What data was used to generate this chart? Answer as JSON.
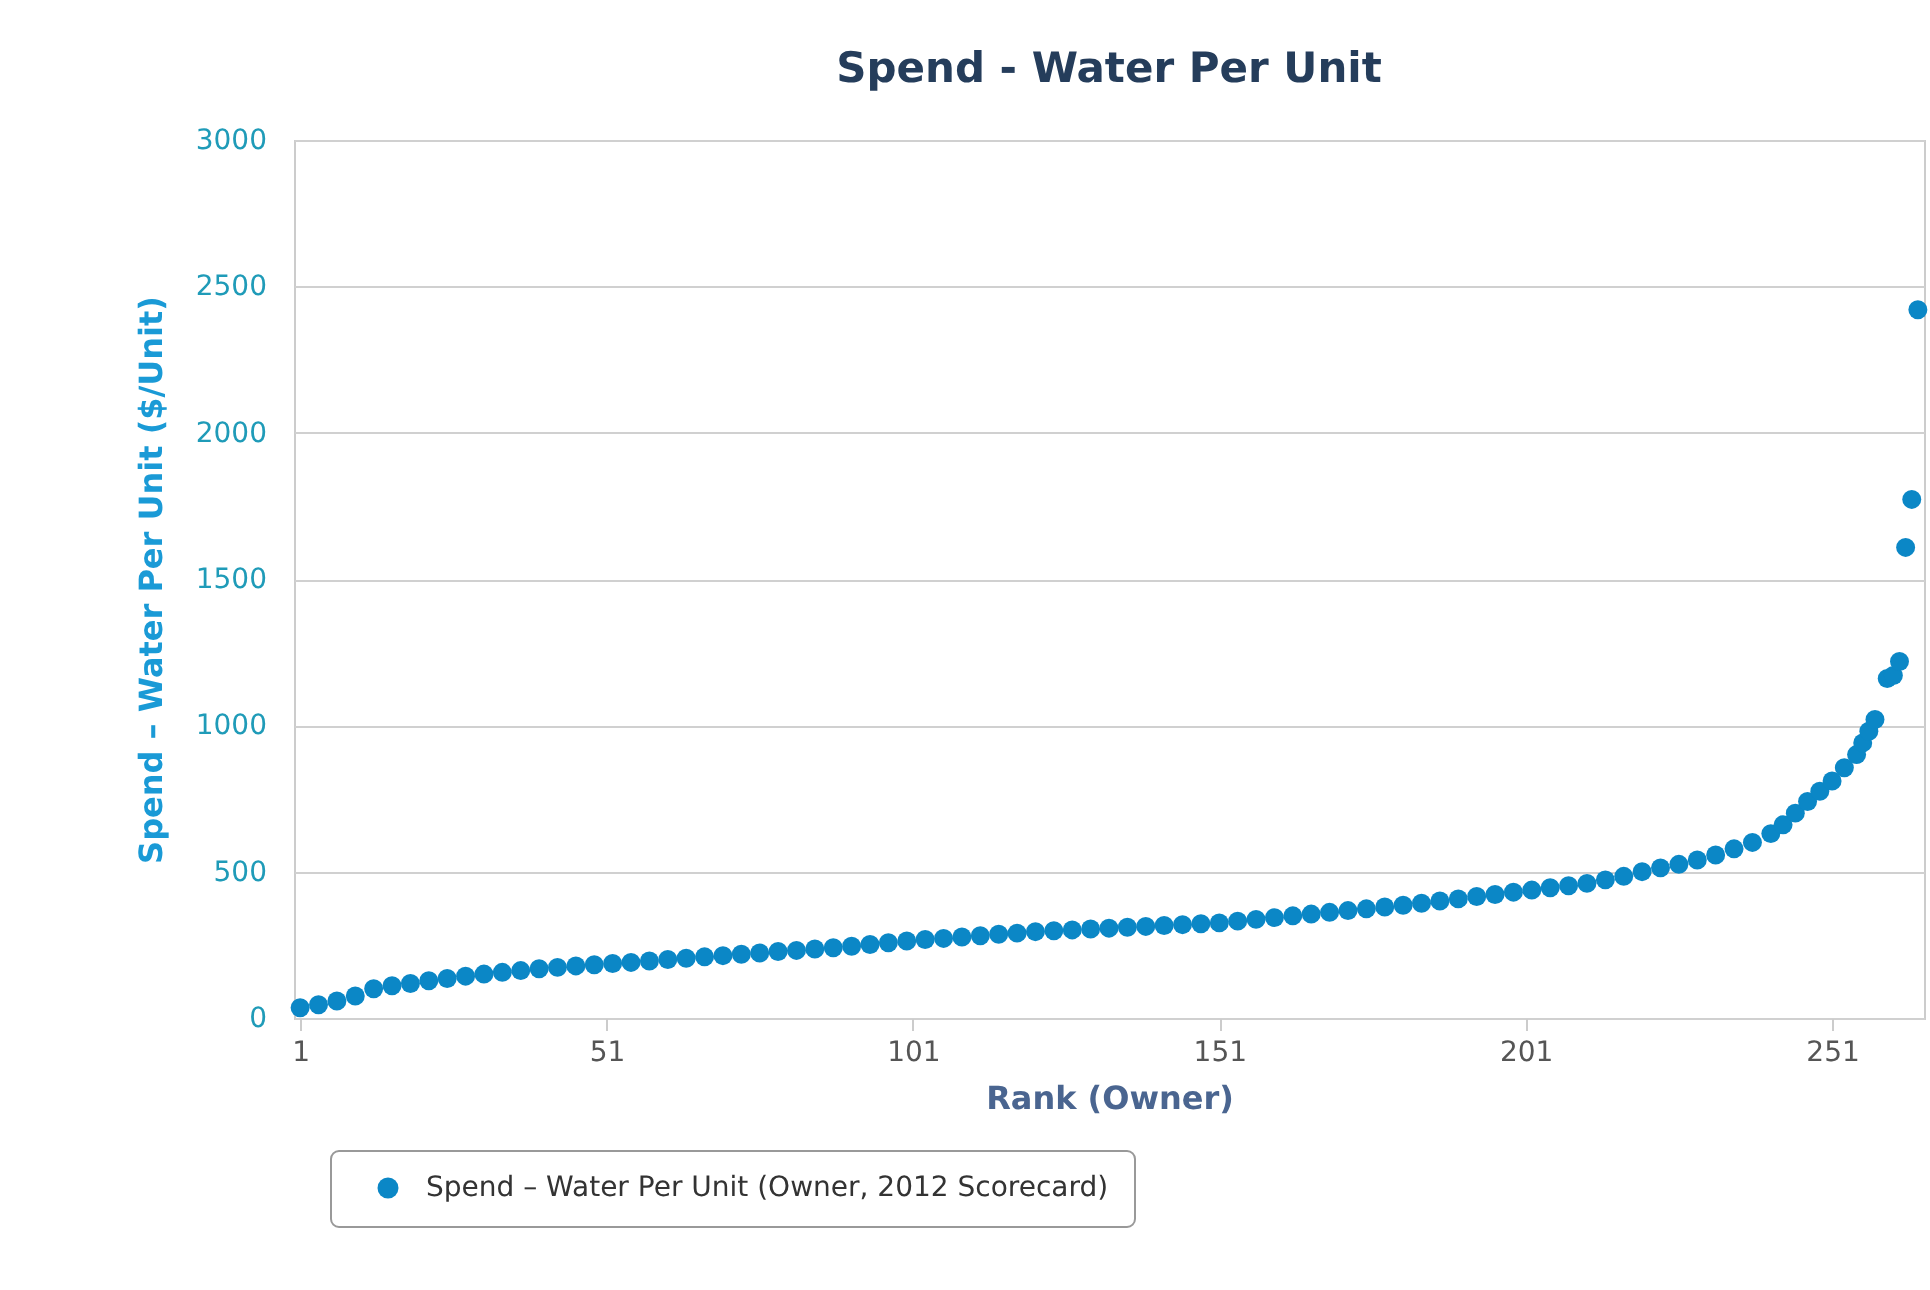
{
  "chart_data": {
    "type": "scatter",
    "title": "Spend - Water Per Unit",
    "xlabel": "Rank (Owner)",
    "ylabel": "Spend – Water Per Unit ($/Unit)",
    "x": [
      1,
      4,
      7,
      10,
      13,
      16,
      19,
      22,
      25,
      28,
      31,
      34,
      37,
      40,
      43,
      46,
      49,
      52,
      55,
      58,
      61,
      64,
      67,
      70,
      73,
      76,
      79,
      82,
      85,
      88,
      91,
      94,
      97,
      100,
      103,
      106,
      109,
      112,
      115,
      118,
      121,
      124,
      127,
      130,
      133,
      136,
      139,
      142,
      145,
      148,
      151,
      154,
      157,
      160,
      163,
      166,
      169,
      172,
      175,
      178,
      181,
      184,
      187,
      190,
      193,
      196,
      199,
      202,
      205,
      208,
      211,
      214,
      217,
      220,
      223,
      226,
      229,
      232,
      235,
      238,
      241,
      243,
      245,
      247,
      249,
      251,
      253,
      255,
      256,
      257,
      258,
      260,
      261,
      262,
      263,
      264,
      265
    ],
    "series": [
      {
        "name": "Spend – Water Per Unit (Owner, 2012 Scorecard)",
        "color": "#0b87c6",
        "values": [
          35,
          45,
          58,
          75,
          100,
          110,
          118,
          127,
          135,
          143,
          150,
          156,
          162,
          168,
          173,
          178,
          182,
          186,
          190,
          195,
          200,
          204,
          209,
          213,
          218,
          222,
          227,
          231,
          236,
          240,
          245,
          251,
          257,
          263,
          268,
          272,
          277,
          281,
          286,
          290,
          295,
          298,
          301,
          304,
          307,
          310,
          313,
          316,
          319,
          322,
          325,
          331,
          337,
          343,
          349,
          355,
          361,
          367,
          373,
          379,
          385,
          392,
          400,
          407,
          415,
          422,
          430,
          437,
          445,
          452,
          460,
          472,
          484,
          500,
          513,
          525,
          540,
          557,
          578,
          600,
          630,
          660,
          700,
          740,
          775,
          810,
          855,
          900,
          940,
          980,
          1020,
          1160,
          1170,
          1218,
          1608,
          1772,
          2420
        ]
      }
    ],
    "xlim": [
      0,
      266
    ],
    "xticks": [
      1,
      51,
      101,
      151,
      201,
      251
    ],
    "ylim": [
      0,
      3000
    ],
    "yticks": [
      0,
      500,
      1000,
      1500,
      2000,
      2500,
      3000
    ],
    "grid": "y",
    "legend": "bottom",
    "marker": "circle"
  }
}
